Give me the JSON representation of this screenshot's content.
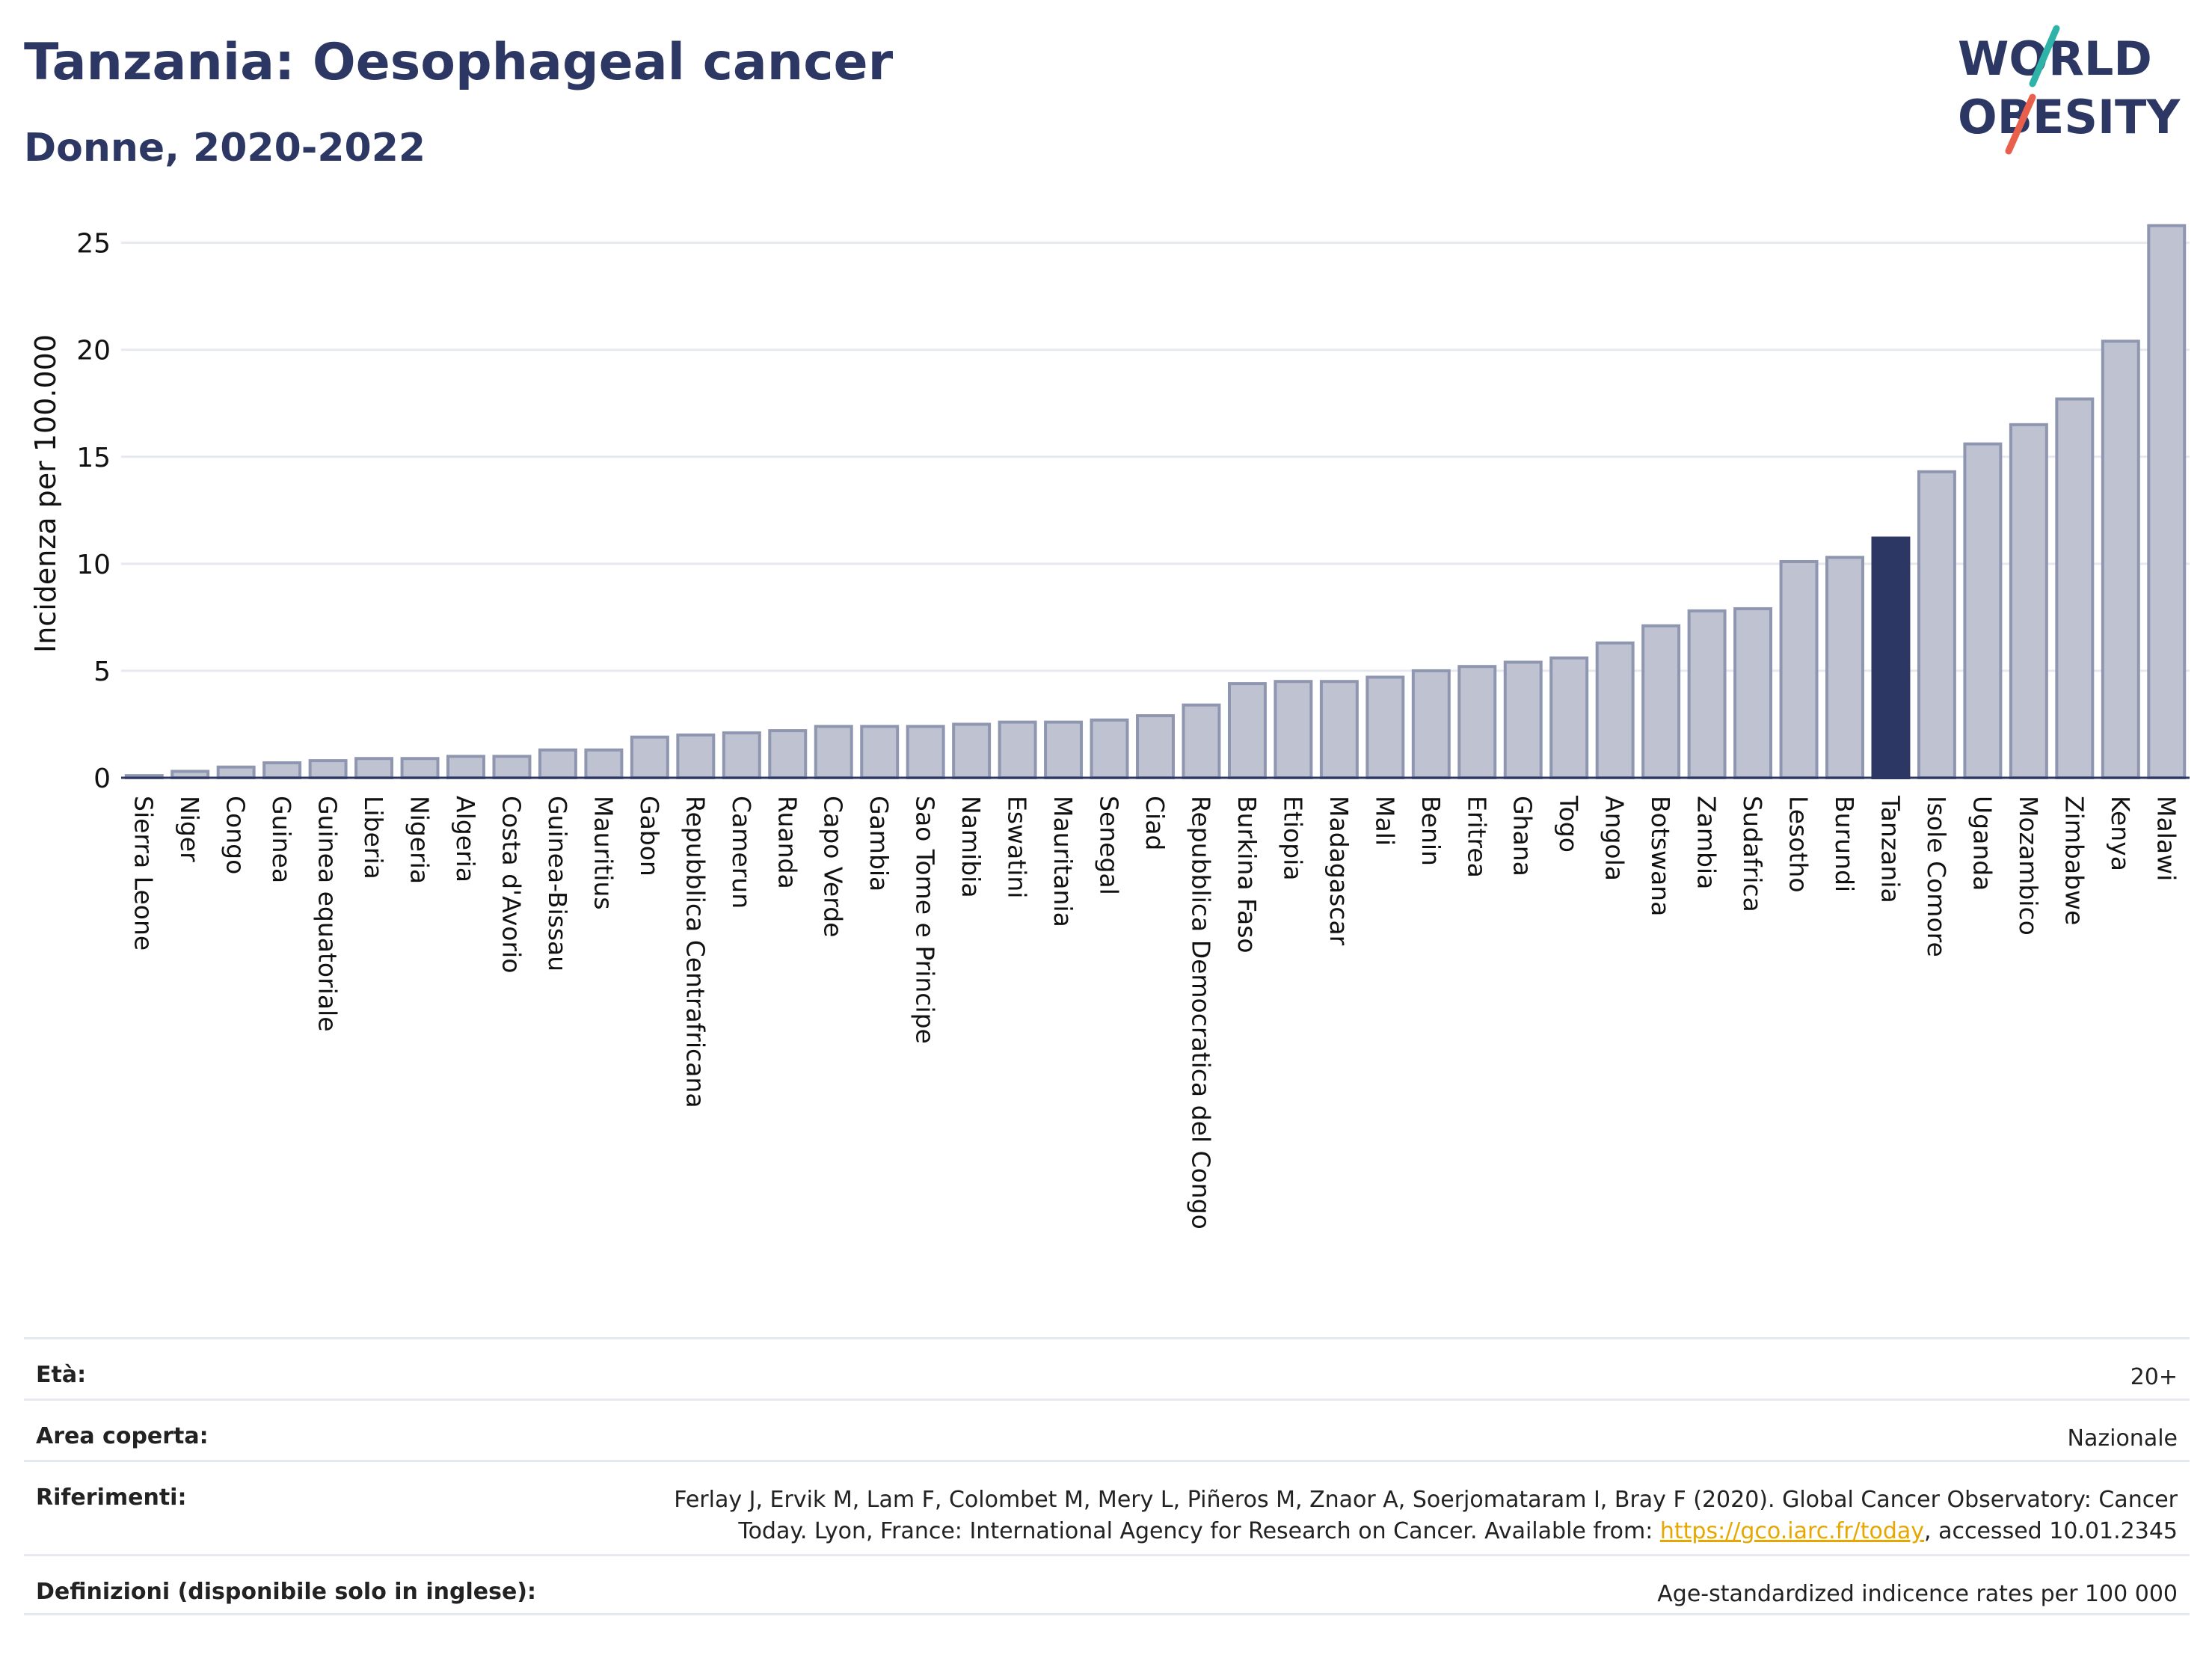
{
  "header": {
    "title": "Tanzania: Oesophageal cancer",
    "subtitle": "Donne, 2020-2022",
    "logo_line1": "WORLD",
    "logo_line2": "OBESITY"
  },
  "chart_data": {
    "type": "bar",
    "ylabel": "Incidenza per 100.000",
    "xlabel": "",
    "ylim": [
      0,
      26
    ],
    "yticks": [
      0,
      5,
      10,
      15,
      20,
      25
    ],
    "grid": true,
    "highlight": "Tanzania",
    "colors": {
      "bar": "#bfc3d1",
      "bar_edge": "#8f96b0",
      "highlight": "#2c3863",
      "grid": "#e6e9f0",
      "axis": "#2c3863"
    },
    "categories": [
      "Sierra Leone",
      "Niger",
      "Congo",
      "Guinea",
      "Guinea equatoriale",
      "Liberia",
      "Nigeria",
      "Algeria",
      "Costa d'Avorio",
      "Guinea-Bissau",
      "Mauritius",
      "Gabon",
      "Repubblica Centrafricana",
      "Camerun",
      "Ruanda",
      "Capo Verde",
      "Gambia",
      "Sao Tome e Principe",
      "Namibia",
      "Eswatini",
      "Mauritania",
      "Senegal",
      "Ciad",
      "Repubblica Democratica del Congo",
      "Burkina Faso",
      "Etiopia",
      "Madagascar",
      "Mali",
      "Benin",
      "Eritrea",
      "Ghana",
      "Togo",
      "Angola",
      "Botswana",
      "Zambia",
      "Sudafrica",
      "Lesotho",
      "Burundi",
      "Tanzania",
      "Isole Comore",
      "Uganda",
      "Mozambico",
      "Zimbabwe",
      "Kenya",
      "Malawi"
    ],
    "values": [
      0.1,
      0.3,
      0.5,
      0.7,
      0.8,
      0.9,
      0.9,
      1.0,
      1.0,
      1.3,
      1.3,
      1.9,
      2.0,
      2.1,
      2.2,
      2.4,
      2.4,
      2.4,
      2.5,
      2.6,
      2.6,
      2.7,
      2.9,
      3.4,
      4.4,
      4.5,
      4.5,
      4.7,
      5.0,
      5.2,
      5.4,
      5.6,
      6.3,
      7.1,
      7.8,
      7.9,
      10.1,
      10.3,
      11.2,
      14.3,
      15.6,
      16.5,
      17.7,
      20.4,
      25.8
    ]
  },
  "meta": {
    "age_label": "Età:",
    "age_value": "20+",
    "area_label": "Area coperta:",
    "area_value": "Nazionale",
    "ref_label": "Riferimenti:",
    "ref_text_1": "Ferlay J, Ervik M, Lam F, Colombet M, Mery L, Piñeros M, Znaor A, Soerjomataram I, Bray F (2020). Global Cancer Observatory: Cancer Today. Lyon, France: International Agency for Research on Cancer. Available from: ",
    "ref_link": "https://gco.iarc.fr/today",
    "ref_text_2": ", accessed 10.01.2345",
    "def_label": "Definizioni (disponibile solo in inglese):",
    "def_value": "Age-standardized indicence rates per 100 000"
  }
}
